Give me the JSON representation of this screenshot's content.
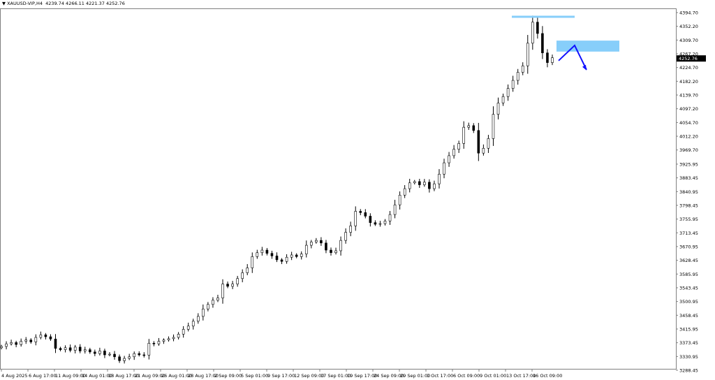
{
  "header": {
    "symbol": "XAUUSD-VIP,H4",
    "ohlc": "4239.74 4266.11 4221.37 4252.76"
  },
  "chart_data": {
    "type": "candlestick",
    "title": "",
    "xlabel": "",
    "ylabel": "",
    "ylim": [
      3288.45,
      4394.7
    ],
    "grid": false,
    "current_price": "4252.76",
    "y_ticks": [
      "4394.70",
      "4352.20",
      "4309.70",
      "4267.20",
      "4224.70",
      "4182.20",
      "4139.70",
      "4097.20",
      "4054.70",
      "4012.20",
      "3969.70",
      "3925.95",
      "3883.45",
      "3840.95",
      "3798.45",
      "3755.95",
      "3713.45",
      "3670.95",
      "3628.45",
      "3585.95",
      "3543.45",
      "3500.95",
      "3458.45",
      "3415.95",
      "3373.45",
      "3330.95",
      "3288.45"
    ],
    "x_ticks": [
      "4 Aug 2025",
      "6 Aug 17:00",
      "11 Aug 09:00",
      "14 Aug 01:00",
      "18 Aug 17:00",
      "21 Aug 09:00",
      "26 Aug 01:00",
      "28 Aug 17:00",
      "2 Sep 09:00",
      "5 Sep 01:00",
      "9 Sep 17:00",
      "12 Sep 09:00",
      "17 Sep 01:00",
      "19 Sep 17:00",
      "24 Sep 09:00",
      "29 Sep 01:00",
      "1 Oct 17:00",
      "6 Oct 09:00",
      "9 Oct 01:00",
      "13 Oct 17:00",
      "16 Oct 09:00"
    ],
    "closes": [
      3362,
      3370,
      3374,
      3368,
      3378,
      3382,
      3376,
      3390,
      3398,
      3392,
      3385,
      3356,
      3352,
      3358,
      3350,
      3360,
      3348,
      3352,
      3345,
      3340,
      3348,
      3336,
      3338,
      3330,
      3318,
      3325,
      3330,
      3340,
      3336,
      3335,
      3372,
      3370,
      3378,
      3382,
      3386,
      3390,
      3400,
      3415,
      3425,
      3440,
      3455,
      3478,
      3492,
      3505,
      3512,
      3555,
      3548,
      3555,
      3572,
      3590,
      3605,
      3640,
      3652,
      3660,
      3650,
      3642,
      3630,
      3625,
      3638,
      3645,
      3640,
      3648,
      3675,
      3685,
      3690,
      3682,
      3660,
      3652,
      3658,
      3690,
      3715,
      3735,
      3780,
      3776,
      3765,
      3745,
      3740,
      3742,
      3750,
      3770,
      3800,
      3830,
      3850,
      3868,
      3872,
      3862,
      3870,
      3850,
      3865,
      3895,
      3930,
      3952,
      3972,
      3990,
      4040,
      4045,
      4030,
      3960,
      3975,
      4005,
      4080,
      4115,
      4135,
      4160,
      4185,
      4210,
      4230,
      4300,
      4365,
      4330,
      4270,
      4240,
      4255
    ],
    "annotations": {
      "resistance_line": {
        "price": 4381.7,
        "color": "#87cefa"
      },
      "supply_zone": {
        "price_top": 4308,
        "price_bottom": 4274,
        "color": "#87cefa"
      },
      "projection_path": {
        "prices": [
          4246,
          4293,
          4218
        ],
        "color": "#1010ff"
      }
    },
    "colors": {
      "bull_body": "#ffffff",
      "bear_body": "#000000",
      "wick": "#000000",
      "axis": "#808080"
    }
  }
}
